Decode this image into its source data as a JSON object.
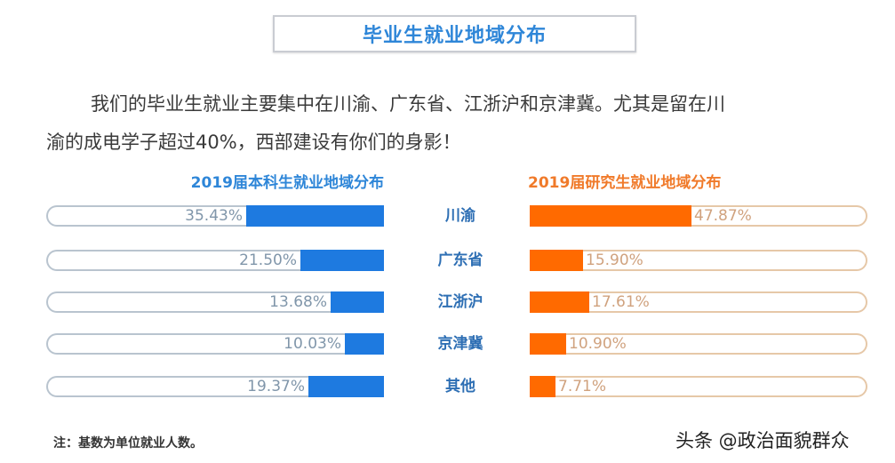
{
  "title": "毕业生就业地域分布",
  "intro": {
    "line1": "我们的毕业生就业主要集中在川渝、广东省、江浙沪和京津冀。尤其是留在川",
    "line2": "渝的成电学子超过40%，西部建设有你们的身影！"
  },
  "colors": {
    "undergrad": "#1e7ae0",
    "graduate": "#ff6a00",
    "title": "#2e86d8"
  },
  "chart_data": [
    {
      "type": "bar",
      "orientation": "horizontal",
      "title": "2019届本科生就业地域分布",
      "categories": [
        "川渝",
        "广东省",
        "江浙沪",
        "京津冀",
        "其他"
      ],
      "values": [
        35.43,
        21.5,
        13.68,
        10.03,
        19.37
      ],
      "labels": [
        "35.43%",
        "21.50%",
        "13.68%",
        "10.03%",
        "19.37%"
      ],
      "unit": "%",
      "direction": "right-to-left",
      "xlim": [
        0,
        100
      ]
    },
    {
      "type": "bar",
      "orientation": "horizontal",
      "title": "2019届研究生就业地域分布",
      "categories": [
        "川渝",
        "广东省",
        "江浙沪",
        "京津冀",
        "其他"
      ],
      "values": [
        47.87,
        15.9,
        17.61,
        10.9,
        7.71
      ],
      "labels": [
        "47.87%",
        "15.90%",
        "17.61%",
        "10.90%",
        "7.71%"
      ],
      "unit": "%",
      "direction": "left-to-right",
      "xlim": [
        0,
        100
      ]
    }
  ],
  "note": "注：基数为单位就业人数。",
  "watermark": "头条 @政治面貌群众"
}
